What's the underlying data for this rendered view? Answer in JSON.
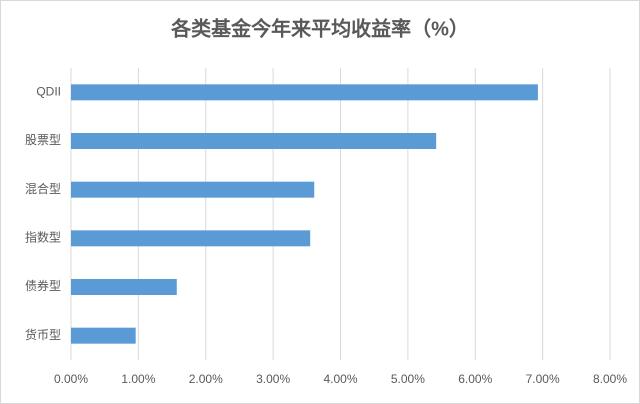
{
  "chart_data": {
    "type": "barh",
    "title": "各类基金今年来平均收益率（%）",
    "categories": [
      "QDII",
      "股票型",
      "混合型",
      "指数型",
      "债券型",
      "货币型"
    ],
    "values": [
      6.93,
      5.42,
      3.61,
      3.55,
      1.57,
      0.96
    ],
    "color": "#5b9bd5",
    "xlim": [
      0,
      8
    ],
    "xticks": [
      {
        "value": 0,
        "label": "0.00%"
      },
      {
        "value": 1,
        "label": "1.00%"
      },
      {
        "value": 2,
        "label": "2.00%"
      },
      {
        "value": 3,
        "label": "3.00%"
      },
      {
        "value": 4,
        "label": "4.00%"
      },
      {
        "value": 5,
        "label": "5.00%"
      },
      {
        "value": 6,
        "label": "6.00%"
      },
      {
        "value": 7,
        "label": "7.00%"
      },
      {
        "value": 8,
        "label": "8.00%"
      }
    ],
    "grid": true
  }
}
